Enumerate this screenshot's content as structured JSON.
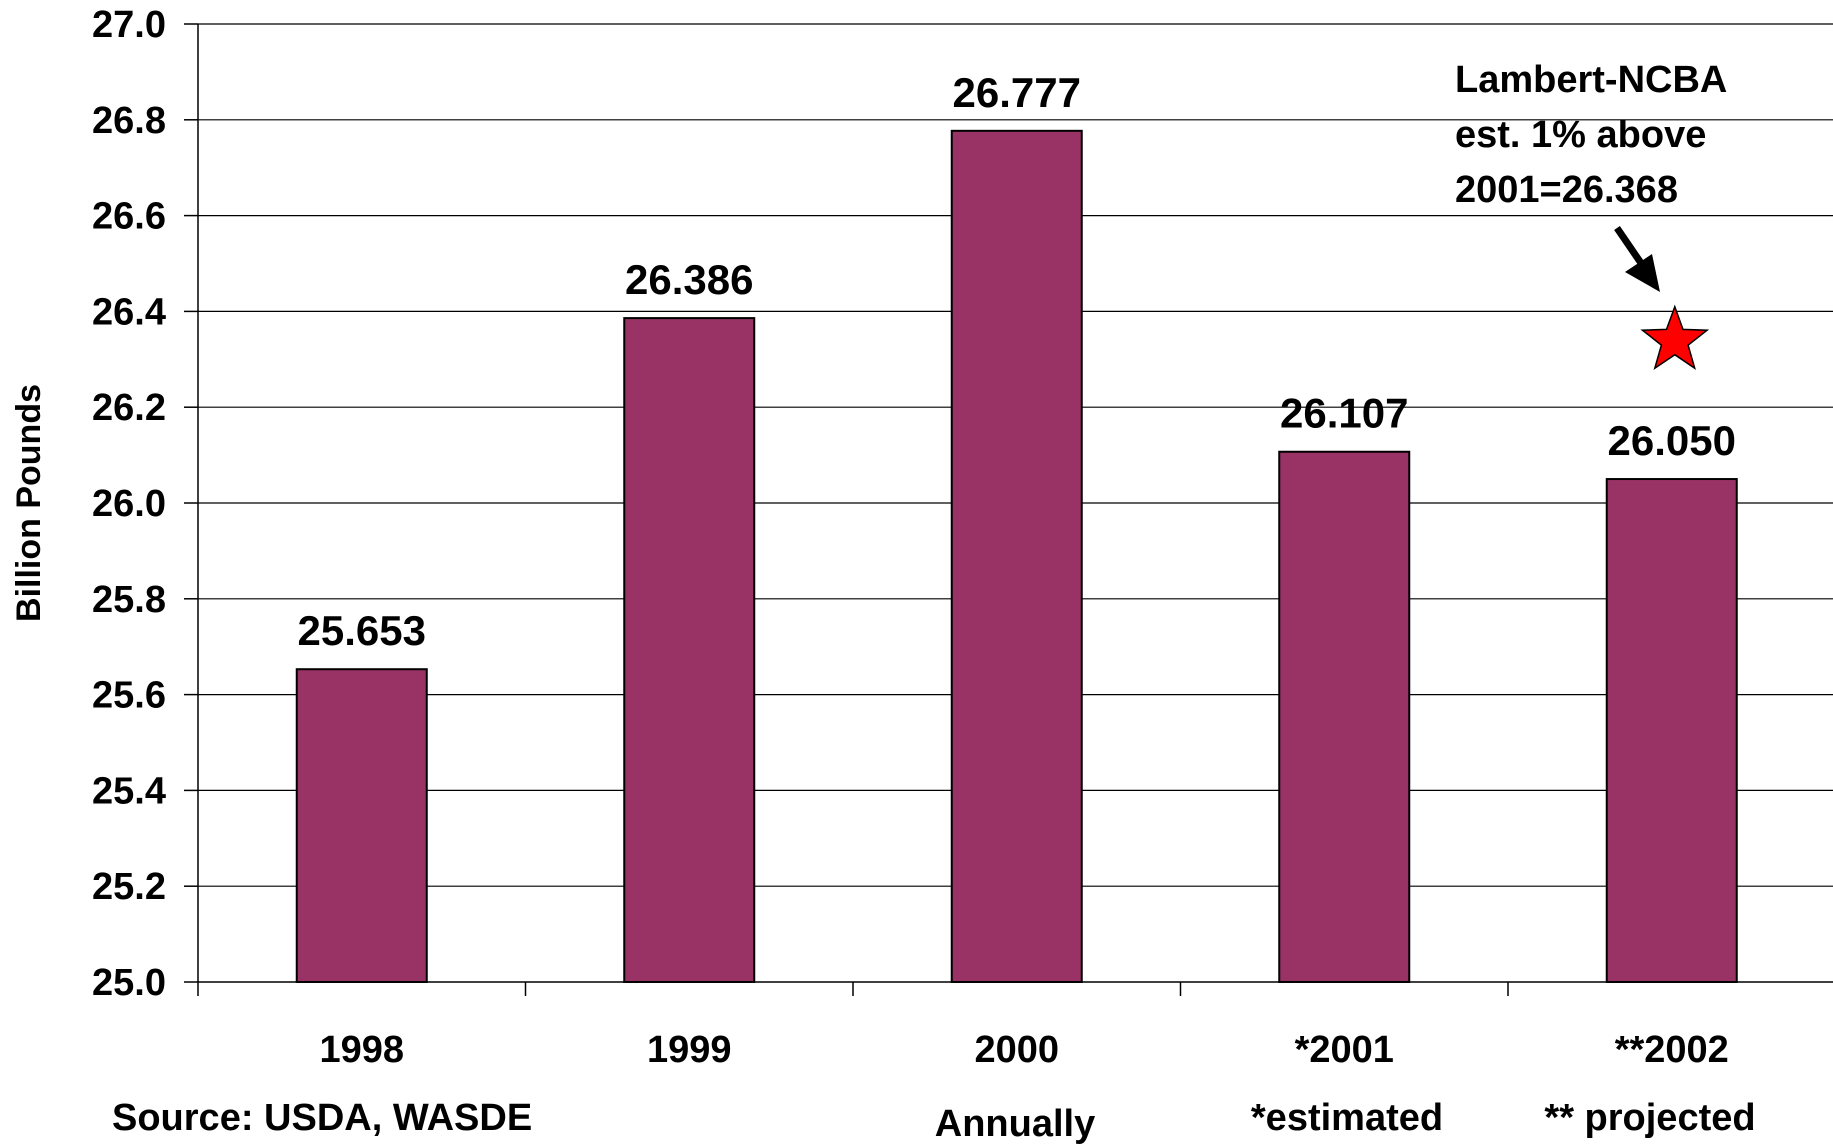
{
  "chart_data": {
    "type": "bar",
    "categories": [
      "1998",
      "1999",
      "2000",
      "*2001",
      "**2002"
    ],
    "values": [
      25.653,
      26.386,
      26.777,
      26.107,
      26.05
    ],
    "value_labels": [
      "25.653",
      "26.386",
      "26.777",
      "26.107",
      "26.050"
    ],
    "ylabel": "Billion Pounds",
    "xlabel": "Annually",
    "ylim": [
      25.0,
      27.0
    ],
    "yticks": [
      "25.0",
      "25.2",
      "25.4",
      "25.6",
      "25.8",
      "26.0",
      "26.2",
      "26.4",
      "26.6",
      "26.8",
      "27.0"
    ],
    "grid": true,
    "bar_color": "#993366",
    "notes": {
      "source": "Source: USDA, WASDE",
      "estimated": "*estimated",
      "projected": "** projected"
    },
    "annotation": {
      "lines": [
        "Lambert-NCBA",
        "est. 1% above",
        "2001=26.368"
      ],
      "marker": "star-icon",
      "marker_color": "#ff0000",
      "marker_value": 26.368,
      "category": "**2002"
    }
  }
}
